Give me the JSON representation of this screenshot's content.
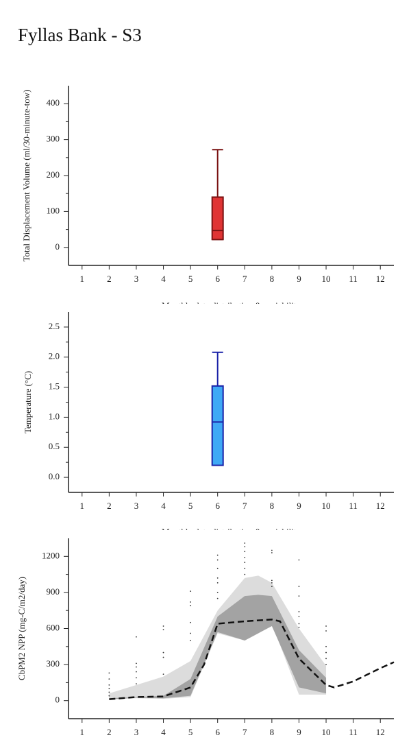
{
  "title": "Fyllas Bank - S3",
  "chart_data": [
    {
      "type": "box",
      "ylabel": "Total Displacement Volume (ml/30-minute-tow)",
      "xlabel": "Monthly data distribution & variability",
      "xlim": [
        0.5,
        12.5
      ],
      "xticks": [
        1,
        2,
        3,
        4,
        5,
        6,
        7,
        8,
        9,
        10,
        11,
        12
      ],
      "ylim": [
        -50,
        450
      ],
      "yticks": [
        0,
        100,
        200,
        300,
        400
      ],
      "yminor_ticks": [
        50,
        150,
        250,
        350
      ],
      "color": "#e03434",
      "edge_color": "#7a1212",
      "boxes": [
        {
          "x": 6,
          "whisker_low": 22,
          "q1": 22,
          "median": 47,
          "q3": 140,
          "whisker_high": 272
        }
      ]
    },
    {
      "type": "box",
      "ylabel": "Temperature (°C)",
      "xlabel": "Monthly data distribution & variability",
      "xlim": [
        0.5,
        12.5
      ],
      "xticks": [
        1,
        2,
        3,
        4,
        5,
        6,
        7,
        8,
        9,
        10,
        11,
        12
      ],
      "ylim": [
        -0.25,
        2.75
      ],
      "yticks": [
        {
          "value": 0,
          "label": "0.0"
        },
        0.5,
        {
          "value": 1,
          "label": "1.0"
        },
        1.5,
        {
          "value": 2,
          "label": "2.0"
        },
        2.5
      ],
      "yminor_ticks": [
        0.25,
        0.75,
        1.25,
        1.75,
        2.25
      ],
      "color": "#3fa9f5",
      "edge_color": "#1a22a8",
      "boxes": [
        {
          "x": 6,
          "whisker_low": 0.2,
          "q1": 0.2,
          "median": 0.92,
          "q3": 1.52,
          "whisker_high": 2.08
        }
      ]
    },
    {
      "type": "line",
      "ylabel": "CbPM2 NPP (mg-C/m2/day)",
      "xlim": [
        0.5,
        12.5
      ],
      "xticks": [
        1,
        2,
        3,
        4,
        5,
        6,
        7,
        8,
        9,
        10,
        11,
        12
      ],
      "ylim": [
        -150,
        1350
      ],
      "yticks": [
        0,
        300,
        600,
        900,
        1200
      ],
      "yminor_ticks": [
        150,
        450,
        750,
        1050
      ],
      "bands": [
        {
          "color": "#dcdcdc",
          "x": [
            2,
            3,
            4,
            5,
            6,
            7,
            7.5,
            8,
            9,
            10
          ],
          "upper": [
            60,
            130,
            200,
            330,
            750,
            1020,
            1040,
            980,
            600,
            290
          ],
          "lower": [
            10,
            20,
            15,
            30,
            560,
            500,
            560,
            640,
            50,
            50
          ]
        },
        {
          "color": "#a3a3a3",
          "x": [
            2,
            3,
            4,
            5,
            6,
            7,
            7.5,
            8,
            9,
            10
          ],
          "upper": [
            20,
            30,
            40,
            180,
            700,
            870,
            880,
            870,
            420,
            190
          ],
          "lower": [
            10,
            25,
            20,
            40,
            570,
            500,
            560,
            620,
            110,
            60
          ]
        }
      ],
      "line": {
        "color": "#111111",
        "x": [
          2,
          3,
          4,
          5,
          5.5,
          6,
          7,
          8,
          8.3,
          9,
          10,
          10.3,
          11,
          12,
          12.5
        ],
        "values": [
          12,
          30,
          35,
          110,
          300,
          640,
          660,
          675,
          660,
          350,
          130,
          110,
          160,
          270,
          320
        ]
      },
      "points": {
        "color": "#333333",
        "x": [
          2,
          2,
          2,
          2,
          2,
          2,
          3,
          3,
          3,
          3,
          3,
          3,
          4,
          4,
          4,
          4,
          4,
          5,
          5,
          5,
          5,
          5,
          5,
          6,
          6,
          6,
          6,
          6,
          6,
          6,
          7,
          7,
          7,
          7,
          7,
          7,
          7,
          8,
          8,
          8,
          8,
          8,
          9,
          9,
          9,
          9,
          9,
          9,
          9,
          10,
          10,
          10,
          10,
          10,
          10
        ],
        "y": [
          230,
          180,
          130,
          100,
          70,
          40,
          530,
          310,
          280,
          240,
          190,
          140,
          620,
          590,
          400,
          360,
          220,
          910,
          820,
          790,
          650,
          560,
          500,
          1210,
          1170,
          1100,
          1020,
          980,
          900,
          850,
          1310,
          1280,
          1240,
          1190,
          1150,
          1100,
          1050,
          1250,
          1230,
          1000,
          980,
          950,
          1170,
          950,
          870,
          740,
          700,
          640,
          610,
          620,
          580,
          450,
          400,
          350,
          300
        ]
      }
    }
  ]
}
